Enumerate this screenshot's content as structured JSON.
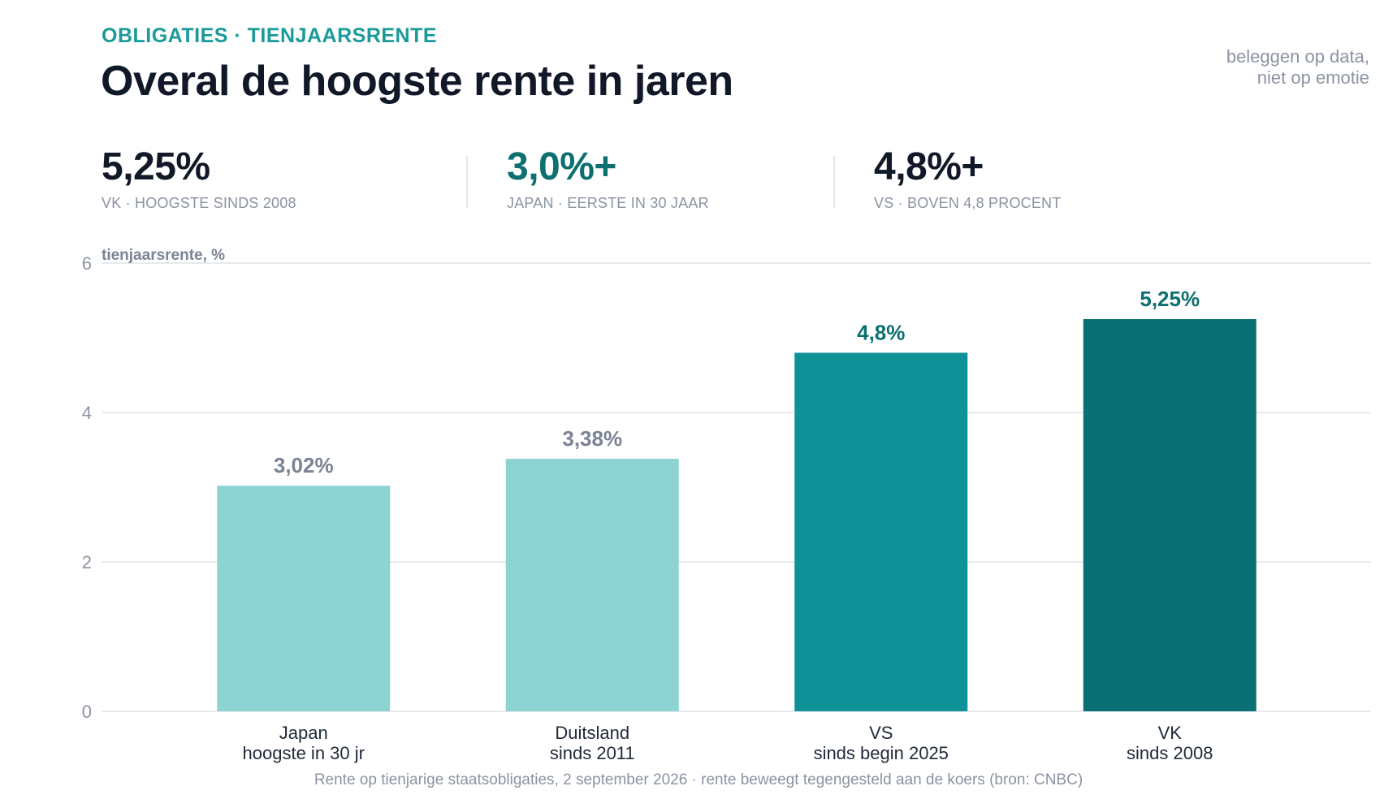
{
  "header": {
    "eyebrow": "OBLIGATIES · TIENJAARSRENTE",
    "title": "Overal de hoogste rente in jaren",
    "tagline_line1": "beleggen op data,",
    "tagline_line2": "niet op emotie"
  },
  "kpis": [
    {
      "value": "5,25%",
      "label": "VK · HOOGSTE SINDS 2008",
      "accent": false
    },
    {
      "value": "3,0%+",
      "label": "JAPAN · EERSTE IN 30 JAAR",
      "accent": true
    },
    {
      "value": "4,8%+",
      "label": "VS · BOVEN 4,8 PROCENT",
      "accent": false
    }
  ],
  "chart_data": {
    "type": "bar",
    "ylabel": "tienjaarsrente, %",
    "ylim": [
      0,
      6
    ],
    "yticks": [
      0,
      2,
      4,
      6
    ],
    "grid": true,
    "categories": [
      [
        "Japan",
        "hoogste in 30 jr"
      ],
      [
        "Duitsland",
        "sinds 2011"
      ],
      [
        "VS",
        "sinds begin 2025"
      ],
      [
        "VK",
        "sinds 2008"
      ]
    ],
    "values": [
      3.02,
      3.38,
      4.8,
      5.25
    ],
    "data_labels": [
      "3,02%",
      "3,38%",
      "4,8%",
      "5,25%"
    ],
    "bar_colors": [
      "#8dd3d2",
      "#8dd3d2",
      "#0e9297",
      "#0a7073"
    ],
    "label_colors": [
      "#7b8494",
      "#7b8494",
      "#0d6f70",
      "#0d6f70"
    ]
  },
  "footnote": "Rente op tienjarige staatsobligaties, 2 september 2026 · rente beweegt tegengesteld aan de koers (bron: CNBC)"
}
